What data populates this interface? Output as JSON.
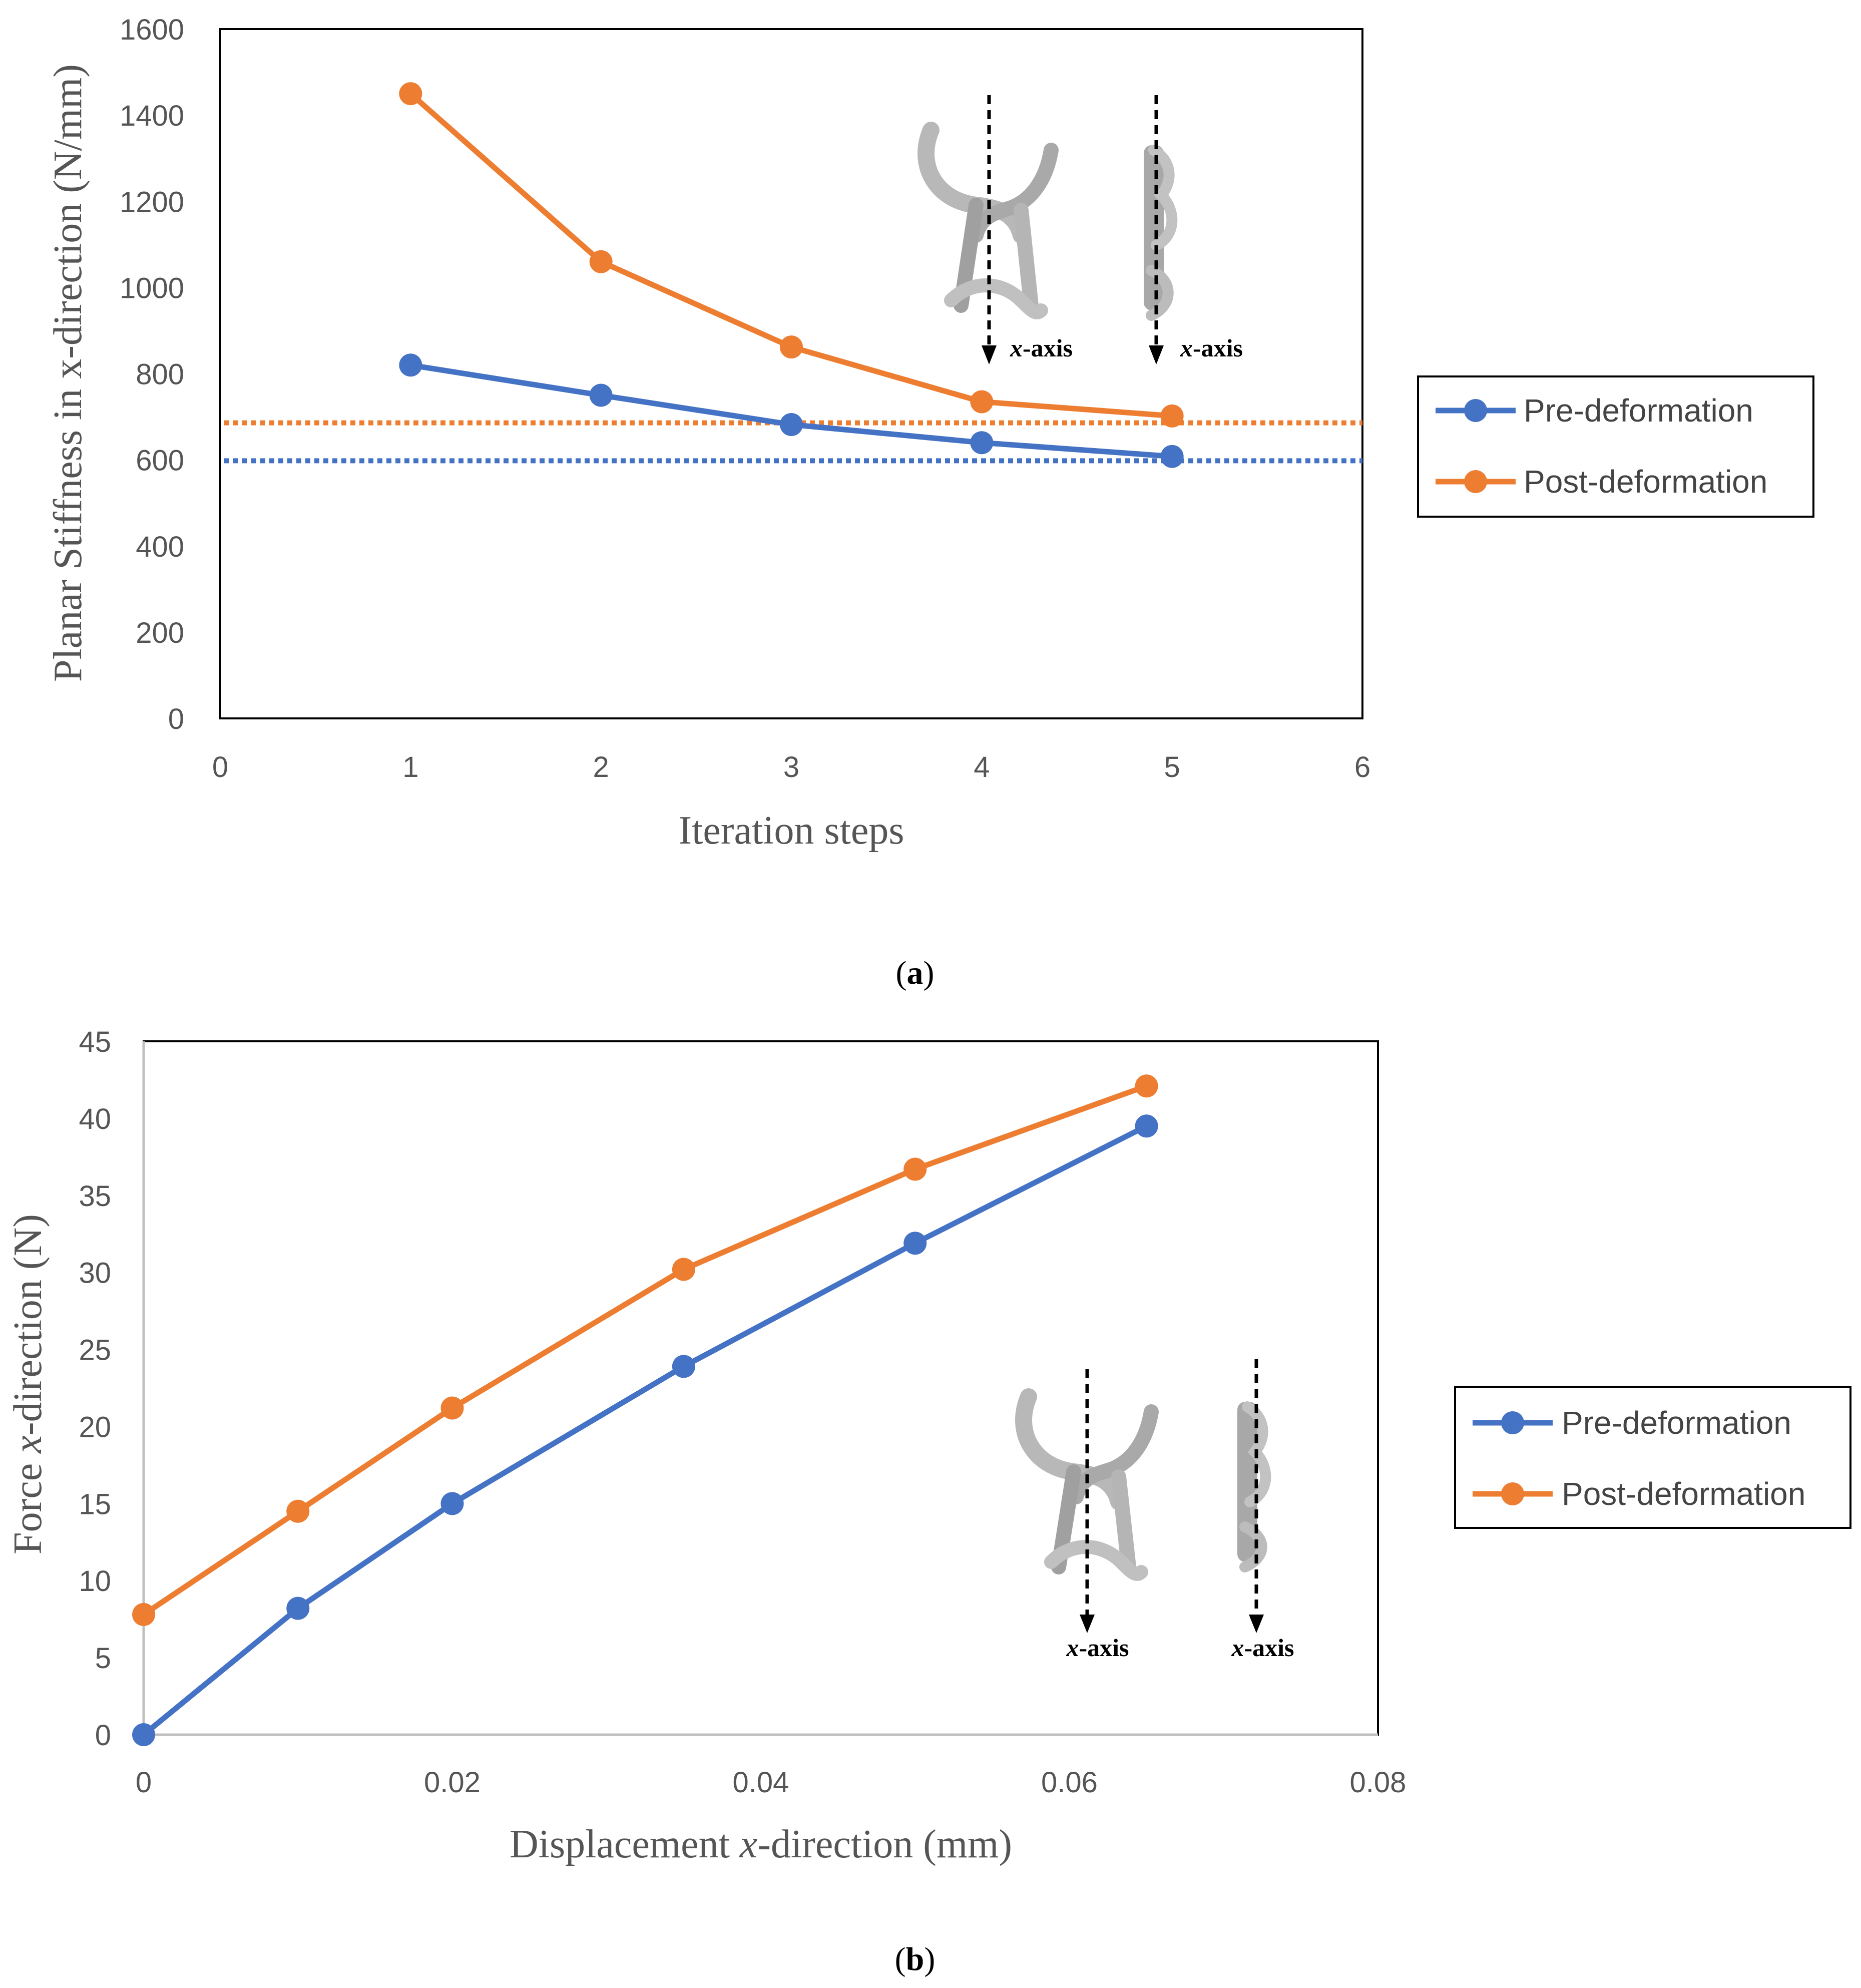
{
  "colors": {
    "pre": "#4472C4",
    "post": "#ED7D31",
    "axis": "#BFBFBF",
    "frame": "#000000",
    "tick_text": "#555555"
  },
  "chart_data": [
    {
      "type": "line",
      "id": "a",
      "caption_letter": "a",
      "caption_left": "(",
      "caption_right": ")",
      "xlabel": "Iteration steps",
      "ylabel": "Planar Stiffness in x-direction (N/mm)",
      "xlim": [
        0,
        6
      ],
      "ylim": [
        0,
        1600
      ],
      "xticks": [
        0,
        1,
        2,
        3,
        4,
        5,
        6
      ],
      "yticks": [
        0,
        200,
        400,
        600,
        800,
        1000,
        1200,
        1400,
        1600
      ],
      "series": [
        {
          "name": "Pre-deformation",
          "color": "#4472C4",
          "x": [
            1,
            2,
            3,
            4,
            5
          ],
          "y": [
            820,
            750,
            682,
            640,
            608
          ]
        },
        {
          "name": "Post-deformation",
          "color": "#ED7D31",
          "x": [
            1,
            2,
            3,
            4,
            5
          ],
          "y": [
            1450,
            1060,
            862,
            735,
            702
          ]
        }
      ],
      "reference_lines": [
        {
          "series": "Post-deformation",
          "color": "#ED7D31",
          "y": 686,
          "style": "dotted"
        },
        {
          "series": "Pre-deformation",
          "color": "#4472C4",
          "y": 598,
          "style": "dotted"
        }
      ],
      "legend": {
        "entries": [
          "Pre-deformation",
          "Post-deformation"
        ],
        "placement": "right"
      },
      "inset_labels": [
        {
          "var": "x",
          "suffix": "-axis"
        },
        {
          "var": "x",
          "suffix": "-axis"
        }
      ]
    },
    {
      "type": "line",
      "id": "b",
      "caption_letter": "b",
      "caption_left": "(",
      "caption_right": ")",
      "xlabel": "Displacement x-direction (mm)",
      "xlabel_parts": [
        "Displacement ",
        "x",
        "-direction (mm)"
      ],
      "ylabel": "Force x-direction (N)",
      "ylabel_parts": [
        "Force ",
        "x",
        "-direction (N)"
      ],
      "xlim": [
        0,
        0.08
      ],
      "ylim": [
        0,
        45
      ],
      "xticks": [
        0,
        0.02,
        0.04,
        0.06,
        0.08
      ],
      "xtick_labels": [
        "0",
        "0.02",
        "0.04",
        "0.06",
        "0.08"
      ],
      "yticks": [
        0,
        5,
        10,
        15,
        20,
        25,
        30,
        35,
        40,
        45
      ],
      "series": [
        {
          "name": "Pre-deformation",
          "color": "#4472C4",
          "x": [
            0,
            0.01,
            0.02,
            0.035,
            0.05,
            0.065
          ],
          "y": [
            0,
            8.2,
            15.0,
            23.9,
            31.9,
            39.5
          ]
        },
        {
          "name": "Post-deformation",
          "color": "#ED7D31",
          "x": [
            0,
            0.01,
            0.02,
            0.035,
            0.05,
            0.065
          ],
          "y": [
            7.8,
            14.5,
            21.2,
            30.2,
            36.7,
            42.1
          ]
        }
      ],
      "legend": {
        "entries": [
          "Pre-deformation",
          "Post-deformation"
        ],
        "placement": "right"
      },
      "inset_labels": [
        {
          "var": "x",
          "suffix": "-axis"
        },
        {
          "var": "x",
          "suffix": "-axis"
        }
      ]
    }
  ]
}
